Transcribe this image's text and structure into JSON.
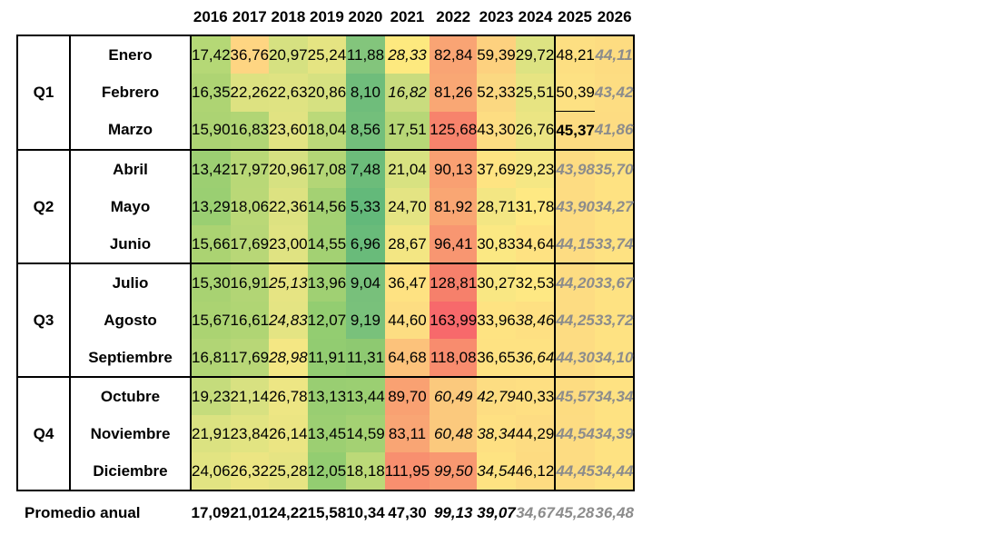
{
  "years": [
    "2016",
    "2017",
    "2018",
    "2019",
    "2020",
    "2021",
    "2022",
    "2023",
    "2024",
    "2025",
    "2026"
  ],
  "quarters": [
    "Q1",
    "Q2",
    "Q3",
    "Q4"
  ],
  "rows": [
    {
      "month": "Enero",
      "values": [
        "17,42",
        "36,76",
        "20,97",
        "25,24",
        "11,88",
        "28,33",
        "82,84",
        "59,39",
        "29,72",
        "48,21",
        "44,11"
      ],
      "colors": [
        "#b5d876",
        "#fed582",
        "#d6e181",
        "#e5e482",
        "#83c57c",
        "#fde97f",
        "#f9a474",
        "#fdd17f",
        "#dde382",
        "#fddf82",
        "#fddc81"
      ],
      "styles": [
        "",
        "",
        "",
        "",
        "",
        "i",
        "",
        "",
        "",
        "",
        "g"
      ]
    },
    {
      "month": "Febrero",
      "values": [
        "16,35",
        "22,26",
        "22,63",
        "20,86",
        "8,10",
        "16,82",
        "81,26",
        "52,33",
        "25,51",
        "50,39",
        "43,42"
      ],
      "colors": [
        "#aed473",
        "#dde281",
        "#dfe382",
        "#d6e181",
        "#6fbd7b",
        "#c9dc7e",
        "#f9a774",
        "#fbd881",
        "#e7e482",
        "#fde183",
        "#fddd82"
      ],
      "styles": [
        "",
        "",
        "",
        "",
        "",
        "i",
        "",
        "",
        "",
        "",
        "g"
      ]
    },
    {
      "month": "Marzo",
      "values": [
        "15,90",
        "16,83",
        "23,60",
        "18,04",
        "8,56",
        "17,51",
        "125,68",
        "43,30",
        "26,76",
        "45,37",
        "41,86"
      ],
      "colors": [
        "#acd373",
        "#b1d575",
        "#e1e382",
        "#bbd979",
        "#73bf7b",
        "#b7d777",
        "#f7836c",
        "#fddd82",
        "#ebe583",
        "#fddc81",
        "#fddc82"
      ],
      "styles": [
        "",
        "",
        "",
        "",
        "",
        "",
        "",
        "",
        "",
        "b",
        "g"
      ]
    },
    {
      "month": "Abril",
      "values": [
        "13,42",
        "17,97",
        "20,96",
        "17,08",
        "7,48",
        "21,04",
        "90,13",
        "37,69",
        "29,23",
        "43,98",
        "35,70"
      ],
      "colors": [
        "#9ccf72",
        "#b9d877",
        "#d6e181",
        "#b3d676",
        "#6cbc7a",
        "#d8e281",
        "#f9a072",
        "#fee482",
        "#f5e784",
        "#fddc82",
        "#fee282"
      ],
      "styles": [
        "",
        "",
        "",
        "",
        "",
        "",
        "",
        "",
        "",
        "g",
        "g"
      ]
    },
    {
      "month": "Mayo",
      "values": [
        "13,29",
        "18,06",
        "22,36",
        "14,56",
        "5,33",
        "24,70",
        "81,92",
        "28,71",
        "31,78",
        "43,90",
        "34,27"
      ],
      "colors": [
        "#9acf72",
        "#bad877",
        "#dde281",
        "#a4d173",
        "#63b97a",
        "#e4e483",
        "#f9a673",
        "#f3e683",
        "#fee983",
        "#fddc82",
        "#fee282"
      ],
      "styles": [
        "",
        "",
        "",
        "",
        "",
        "",
        "",
        "",
        "",
        "g",
        "g"
      ]
    },
    {
      "month": "Junio",
      "values": [
        "15,66",
        "17,69",
        "23,00",
        "14,55",
        "6,96",
        "28,67",
        "96,41",
        "30,83",
        "34,64",
        "44,15",
        "33,74"
      ],
      "colors": [
        "#abd372",
        "#b8d777",
        "#e0e382",
        "#a3d173",
        "#69bb7a",
        "#f3e683",
        "#f89671",
        "#fbe883",
        "#fee282",
        "#fddc82",
        "#fee282"
      ],
      "styles": [
        "",
        "",
        "",
        "",
        "",
        "",
        "",
        "",
        "",
        "g",
        "g"
      ]
    },
    {
      "month": "Julio",
      "values": [
        "15,30",
        "16,91",
        "25,13",
        "13,96",
        "9,04",
        "36,47",
        "128,81",
        "30,27",
        "32,53",
        "44,20",
        "33,67"
      ],
      "colors": [
        "#a8d272",
        "#b2d575",
        "#e6e483",
        "#a0d073",
        "#78c07b",
        "#fee282",
        "#f6806b",
        "#f9e783",
        "#fee883",
        "#fddc82",
        "#fee282"
      ],
      "styles": [
        "",
        "",
        "i",
        "",
        "",
        "",
        "",
        "",
        "",
        "g",
        "g"
      ]
    },
    {
      "month": "Agosto",
      "values": [
        "15,67",
        "16,61",
        "24,83",
        "12,07",
        "9,19",
        "44,60",
        "163,99",
        "33,96",
        "38,46",
        "44,25",
        "33,72"
      ],
      "colors": [
        "#abd372",
        "#b0d574",
        "#e4e483",
        "#93cd71",
        "#79c17b",
        "#fddd82",
        "#f7696b",
        "#fee382",
        "#fee082",
        "#fddc82",
        "#fee282"
      ],
      "styles": [
        "",
        "",
        "i",
        "",
        "",
        "",
        "",
        "",
        "i",
        "g",
        "g"
      ]
    },
    {
      "month": "Septiembre",
      "values": [
        "16,81",
        "17,69",
        "28,98",
        "11,91",
        "11,31",
        "64,68",
        "118,08",
        "36,65",
        "36,64",
        "44,30",
        "34,10"
      ],
      "colors": [
        "#b1d575",
        "#b8d777",
        "#f4e784",
        "#92cc71",
        "#8ec971",
        "#fcc27b",
        "#f88c6e",
        "#fee282",
        "#fee282",
        "#fddc82",
        "#fee282"
      ],
      "styles": [
        "",
        "",
        "i",
        "",
        "",
        "",
        "",
        "",
        "i",
        "g",
        "g"
      ]
    },
    {
      "month": "Octubre",
      "values": [
        "19,23",
        "21,14",
        "26,78",
        "13,13",
        "13,44",
        "89,70",
        "60,49",
        "42,79",
        "40,33",
        "45,57",
        "34,34"
      ],
      "colors": [
        "#c5dc7c",
        "#d8e181",
        "#ede684",
        "#99ce72",
        "#9bcf72",
        "#f9a172",
        "#fbc97d",
        "#fddd82",
        "#fedf82",
        "#fddc81",
        "#fee282"
      ],
      "styles": [
        "",
        "",
        "",
        "",
        "",
        "",
        "i",
        "i",
        "",
        "g",
        "g"
      ]
    },
    {
      "month": "Noviembre",
      "values": [
        "21,91",
        "23,84",
        "26,14",
        "13,45",
        "14,59",
        "83,11",
        "60,48",
        "38,34",
        "44,29",
        "44,54",
        "34,39"
      ],
      "colors": [
        "#dbe281",
        "#e2e482",
        "#ebe583",
        "#9ccf72",
        "#a4d173",
        "#f9a574",
        "#fbc97d",
        "#fee082",
        "#fddc82",
        "#fddc82",
        "#fee282"
      ],
      "styles": [
        "",
        "",
        "",
        "",
        "",
        "",
        "i",
        "i",
        "",
        "g",
        "g"
      ]
    },
    {
      "month": "Diciembre",
      "values": [
        "24,06",
        "26,32",
        "25,28",
        "12,05",
        "18,18",
        "111,95",
        "99,50",
        "34,54",
        "46,12",
        "44,45",
        "34,44"
      ],
      "colors": [
        "#e2e482",
        "#ece583",
        "#e6e483",
        "#93cd71",
        "#bcd978",
        "#f88f6f",
        "#f89871",
        "#fee382",
        "#fddb81",
        "#fddc82",
        "#fee282"
      ],
      "styles": [
        "",
        "",
        "",
        "",
        "",
        "",
        "i",
        "i",
        "",
        "g",
        "g"
      ]
    }
  ],
  "footer": {
    "label": "Promedio anual",
    "values": [
      "17,09",
      "21,01",
      "24,22",
      "15,58",
      "10,34",
      "47,30",
      "99,13",
      "39,07",
      "34,67",
      "45,28",
      "36,48"
    ],
    "styles": [
      "",
      "",
      "",
      "",
      "",
      "",
      "i",
      "i",
      "g",
      "g",
      "g"
    ]
  }
}
